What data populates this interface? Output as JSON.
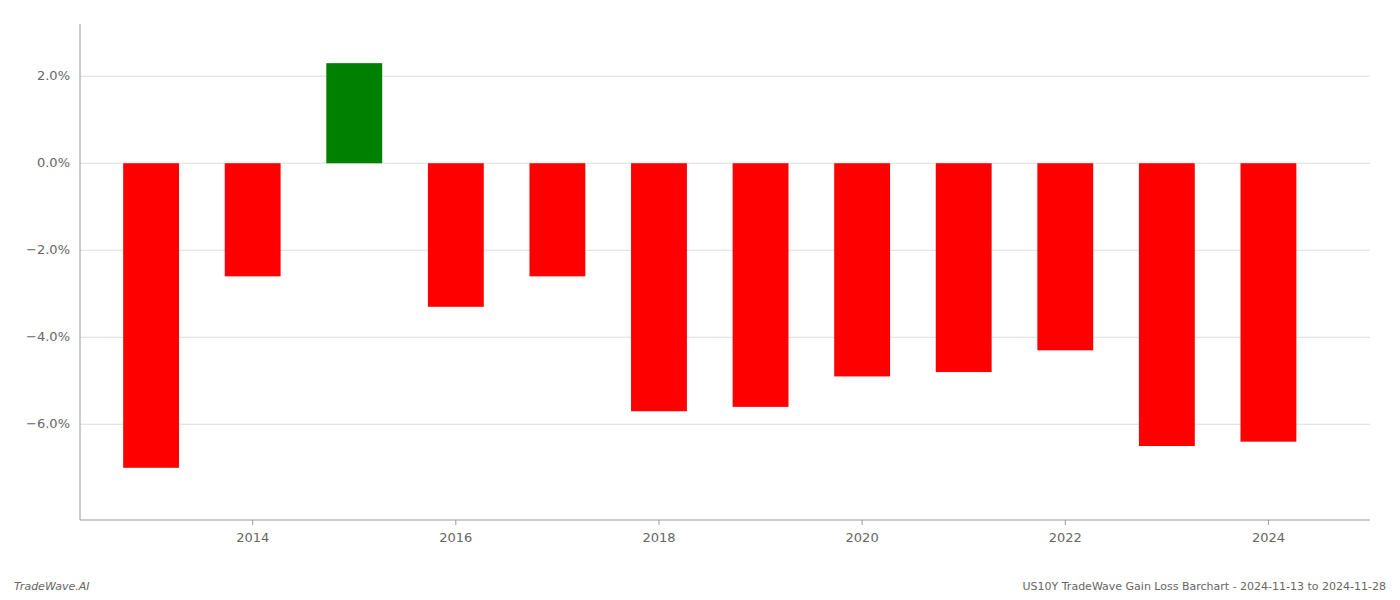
{
  "chart_data": {
    "type": "bar",
    "x": [
      2013,
      2014,
      2015,
      2016,
      2017,
      2018,
      2019,
      2020,
      2021,
      2022,
      2023,
      2024
    ],
    "values": [
      -7.0,
      -2.6,
      2.3,
      -3.3,
      -2.6,
      -5.7,
      -5.6,
      -4.9,
      -4.8,
      -4.3,
      -6.5,
      -6.4
    ],
    "colors": [
      "#ff0000",
      "#ff0000",
      "#008000",
      "#ff0000",
      "#ff0000",
      "#ff0000",
      "#ff0000",
      "#ff0000",
      "#ff0000",
      "#ff0000",
      "#ff0000",
      "#ff0000"
    ],
    "xlim": [
      2012.3,
      2025.0
    ],
    "xticks": [
      2014,
      2016,
      2018,
      2020,
      2022,
      2024
    ],
    "ylim": [
      -8.2,
      3.2
    ],
    "yticks": [
      {
        "value": -6.0,
        "label": "−6.0%"
      },
      {
        "value": -4.0,
        "label": "−4.0%"
      },
      {
        "value": -2.0,
        "label": "−2.0%"
      },
      {
        "value": 0.0,
        "label": "0.0%"
      },
      {
        "value": 2.0,
        "label": "2.0%"
      }
    ],
    "grid": true,
    "annotations": [
      "TradeWave.AI",
      "US10Y TradeWave Gain Loss Barchart - 2024-11-13 to 2024-11-28"
    ]
  }
}
